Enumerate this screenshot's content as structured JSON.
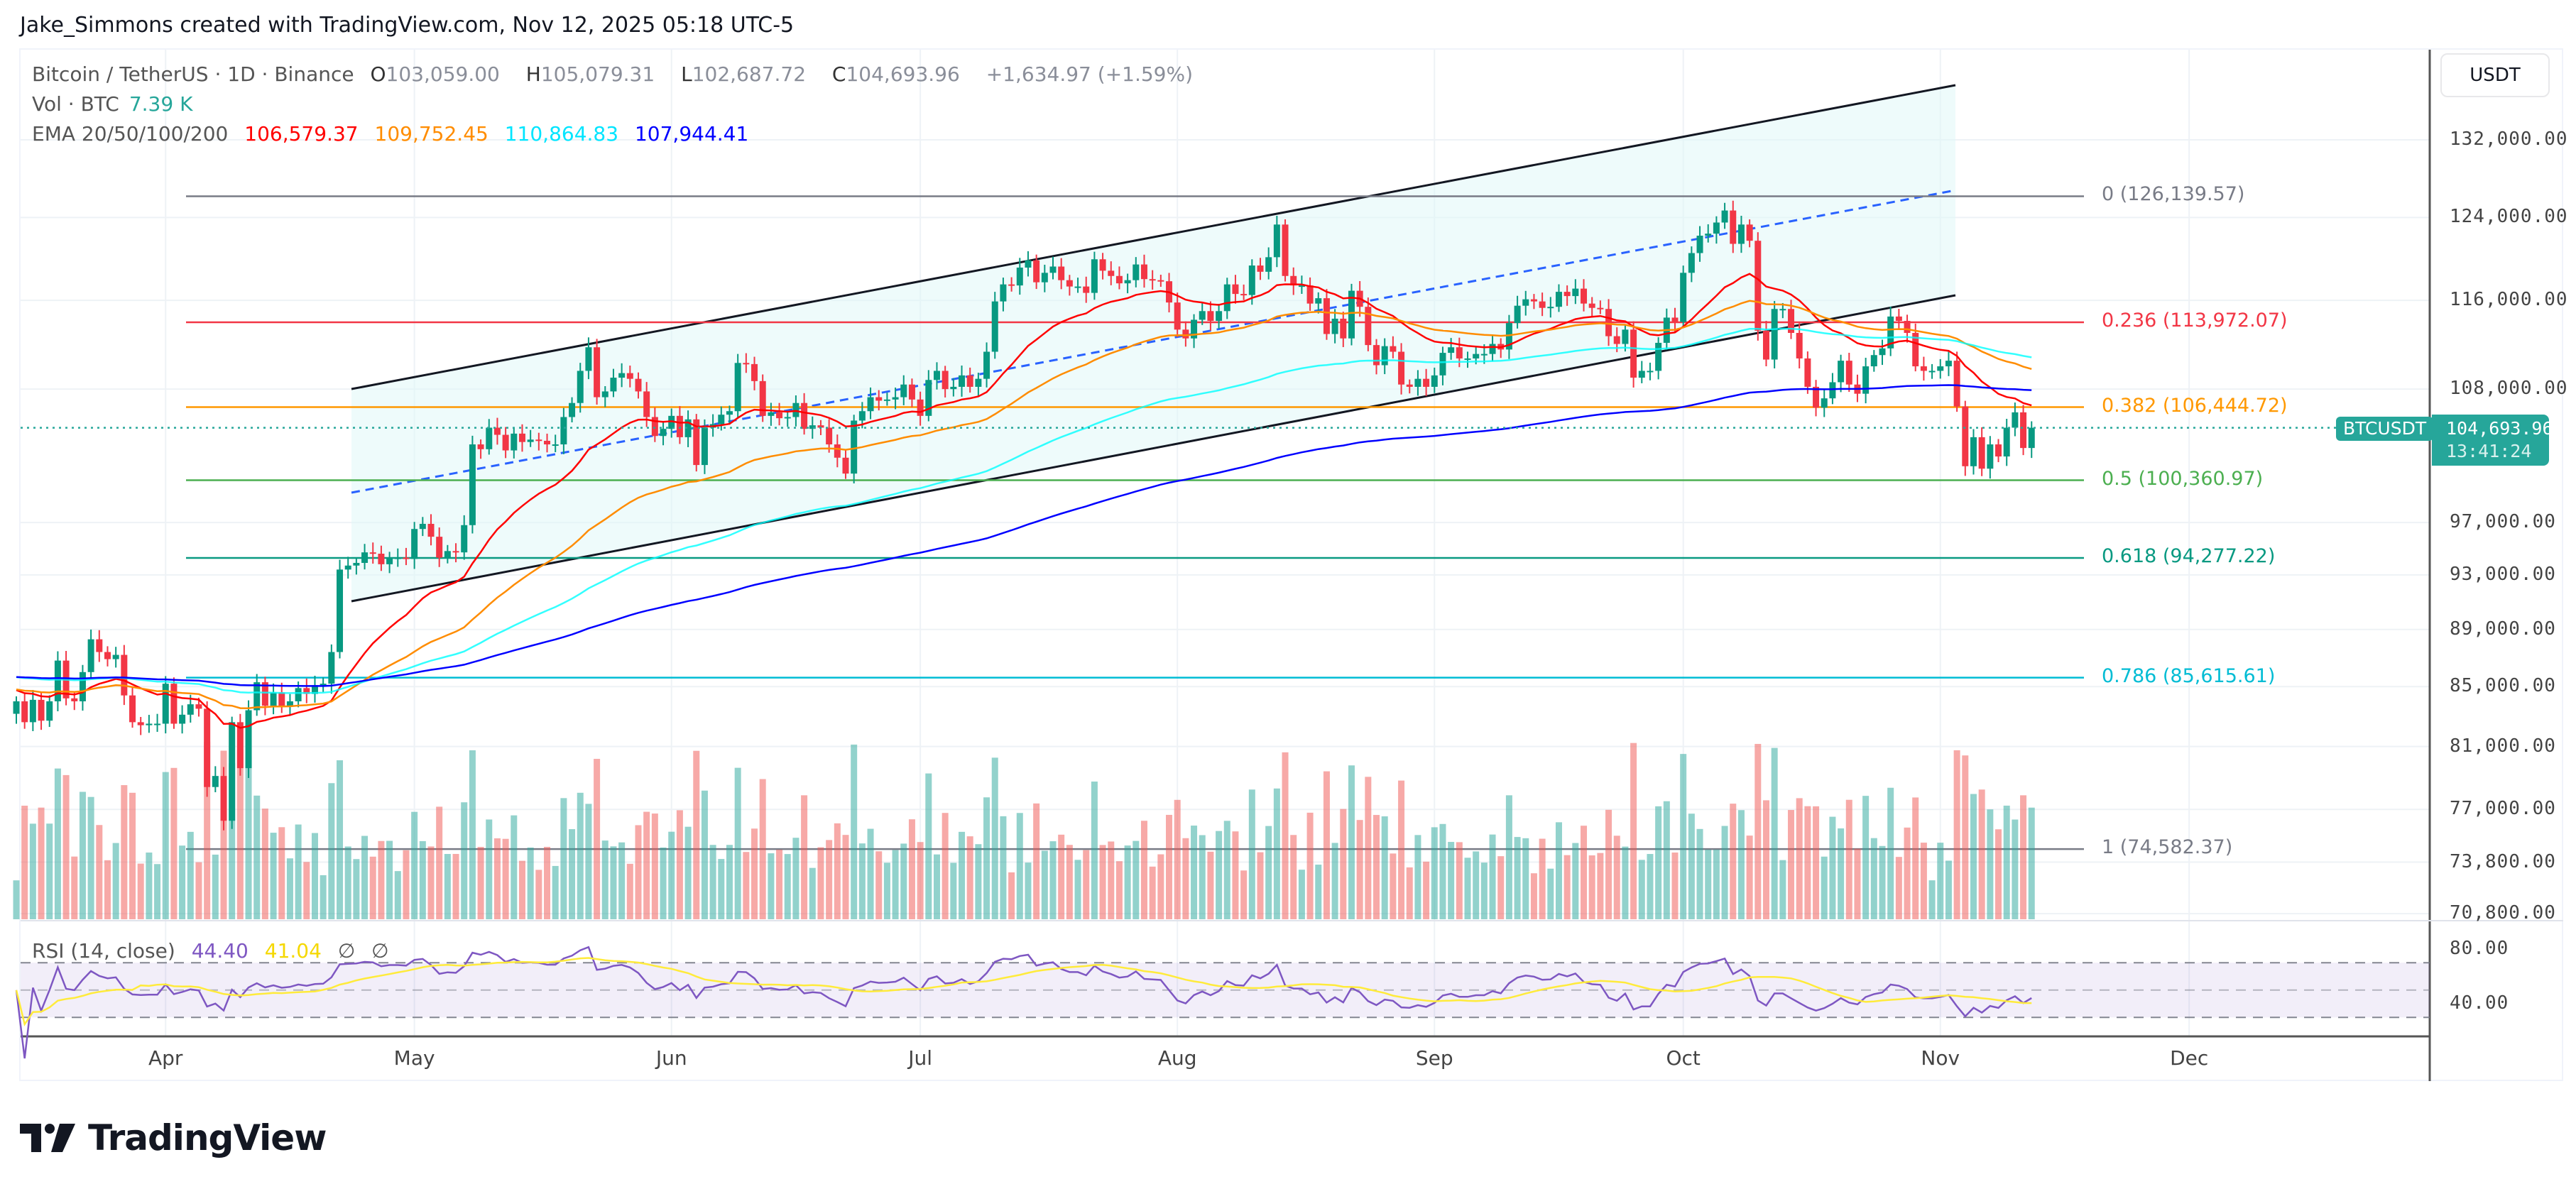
{
  "credit": "Jake_Simmons created with TradingView.com, Nov 12, 2025 05:18 UTC-5",
  "legend": {
    "symbol": "Bitcoin / TetherUS · 1D · Binance",
    "o_label": "O",
    "o": "103,059.00",
    "h_label": "H",
    "h": "105,079.31",
    "l_label": "L",
    "l": "102,687.72",
    "c_label": "C",
    "c": "104,693.96",
    "change": "+1,634.97 (+1.59%)",
    "vol_label": "Vol · BTC",
    "vol": "7.39 K",
    "ema_label": "EMA 20/50/100/200",
    "ema20": "106,579.37",
    "ema50": "109,752.45",
    "ema100": "110,864.83",
    "ema200": "107,944.41",
    "rsi_label": "RSI (14, close)",
    "rsi": "44.40",
    "rsi_ma": "41.04",
    "na1": "∅",
    "na2": "∅"
  },
  "axis": {
    "currency": "USDT",
    "price_ticks": [
      "132,000.00",
      "124,000.00",
      "116,000.00",
      "108,000.00",
      "97,000.00",
      "93,000.00",
      "89,000.00",
      "85,000.00",
      "81,000.00",
      "77,000.00",
      "73,800.00",
      "70,800.00"
    ],
    "rsi_ticks": [
      "80.00",
      "40.00"
    ],
    "time_ticks": [
      "Apr",
      "May",
      "Jun",
      "Jul",
      "Aug",
      "Sep",
      "Oct",
      "Nov",
      "Dec"
    ],
    "last_price": "104,693.96",
    "countdown": "13:41:24",
    "symbol_tag": "BTCUSDT"
  },
  "fib_levels": [
    {
      "label": "0 (126,139.57)",
      "price": 126139.57,
      "color": "#787b86"
    },
    {
      "label": "0.236 (113,972.07)",
      "price": 113972.07,
      "color": "#f23645"
    },
    {
      "label": "0.382 (106,444.72)",
      "price": 106444.72,
      "color": "#ff9800"
    },
    {
      "label": "0.5 (100,360.97)",
      "price": 100360.97,
      "color": "#4caf50"
    },
    {
      "label": "0.618 (94,277.22)",
      "price": 94277.22,
      "color": "#089981"
    },
    {
      "label": "0.786 (85,615.61)",
      "price": 85615.61,
      "color": "#00bcd4"
    },
    {
      "label": "1 (74,582.37)",
      "price": 74582.37,
      "color": "#787b86"
    }
  ],
  "colors": {
    "up": "#089981",
    "down": "#f23645",
    "ema20": "#ff0000",
    "ema50": "#ff8c00",
    "ema100": "#00ffff",
    "ema200": "#0000ff",
    "rsi": "#7e57c2",
    "rsi_ma": "#ffeb3b",
    "channel_fill": "#e0f7f7",
    "last_price": "#26a69a"
  },
  "chart_data": {
    "type": "candlestick",
    "scale": "log",
    "ylim": [
      70800,
      136000
    ],
    "x_start": "2025-03-14",
    "x_end": "2025-11-12",
    "grid": true,
    "indicators": [
      "EMA 20",
      "EMA 50",
      "EMA 100",
      "EMA 200",
      "Volume",
      "RSI 14 with MA"
    ],
    "daily_close": [
      84000,
      82600,
      84100,
      82700,
      84000,
      86800,
      84200,
      84000,
      86000,
      88300,
      87400,
      86900,
      87200,
      84400,
      82600,
      82400,
      82500,
      82500,
      85200,
      82500,
      83100,
      83800,
      83500,
      78400,
      79100,
      76300,
      82600,
      79600,
      83400,
      85300,
      83700,
      84600,
      83700,
      84000,
      84900,
      84500,
      85100,
      85200,
      87400,
      93400,
      93700,
      93900,
      94700,
      94600,
      93800,
      94300,
      94300,
      94200,
      96500,
      96900,
      95900,
      94300,
      94800,
      94700,
      96800,
      103300,
      102900,
      104700,
      104100,
      102800,
      104200,
      103500,
      103700,
      103600,
      103300,
      103300,
      105600,
      106800,
      109600,
      111700,
      107300,
      107800,
      109000,
      109400,
      108900,
      107800,
      105600,
      104000,
      104600,
      105700,
      103900,
      105400,
      101600,
      104700,
      105000,
      105800,
      106100,
      110300,
      110200,
      108700,
      105700,
      106000,
      105500,
      105600,
      106800,
      104600,
      104900,
      104700,
      103300,
      102200,
      100900,
      105300,
      106100,
      107300,
      107000,
      107100,
      107300,
      108400,
      107100,
      105700,
      108800,
      109600,
      108000,
      108200,
      109200,
      108200,
      108900,
      111300,
      115900,
      117500,
      117400,
      119100,
      119800,
      117700,
      118600,
      119200,
      117900,
      117300,
      117300,
      116700,
      119900,
      118800,
      118300,
      117600,
      117900,
      119400,
      118000,
      117900,
      117800,
      115800,
      113300,
      112500,
      114200,
      115000,
      114100,
      115000,
      117500,
      116600,
      116500,
      119300,
      118700,
      120100,
      123300,
      118300,
      117400,
      117400,
      115700,
      116200,
      112900,
      114300,
      112500,
      116900,
      115400,
      111900,
      110100,
      111800,
      111300,
      108400,
      108200,
      108900,
      108200,
      109200,
      111200,
      111700,
      110700,
      110700,
      111100,
      111100,
      112000,
      111500,
      113900,
      115500,
      116100,
      115900,
      115300,
      115400,
      116800,
      116400,
      117100,
      115700,
      115300,
      115200,
      112700,
      112000,
      113300,
      109000,
      109600,
      109600,
      112100,
      114400,
      114000,
      118600,
      120500,
      122200,
      122400,
      123500,
      124700,
      121400,
      123300,
      121700,
      113200,
      110600,
      115200,
      115200,
      113000,
      110700,
      108200,
      106400,
      107200,
      108600,
      110500,
      108400,
      107600,
      110000,
      111000,
      111600,
      114500,
      114100,
      113000,
      110000,
      109600,
      109600,
      110000,
      110500,
      106500,
      101500,
      103900,
      101300,
      103300,
      102300,
      104700,
      106000,
      103000,
      104693.96
    ]
  },
  "logo": "TradingView"
}
